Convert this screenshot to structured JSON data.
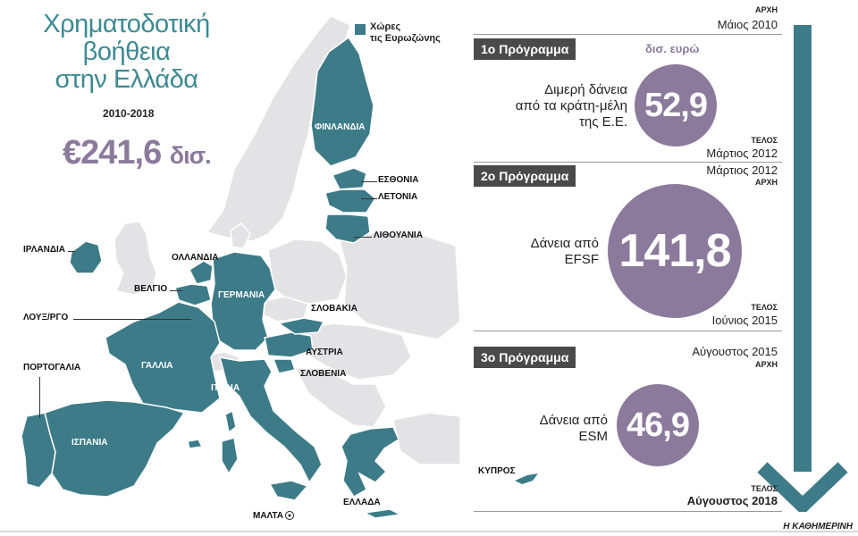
{
  "header": {
    "title_line1": "Χρηματοδοτική",
    "title_line2": "βοήθεια",
    "title_line3": "στην Ελλάδα",
    "years": "2010-2018",
    "total_currency": "€",
    "total_value": "241,6",
    "total_unit": "δισ."
  },
  "legend": {
    "line1": "Χώρες",
    "line2": "τις Ευρωζώνης"
  },
  "map_labels": {
    "finland": "ΦΙΝΛΑΝΔΙΑ",
    "estonia": "ΕΣΘΟΝΙΑ",
    "latvia": "ΛΕΤΟΝΙΑ",
    "lithuania": "ΛΙΘΟΥΑΝΙΑ",
    "ireland": "ΙΡΛΑΝΔΙΑ",
    "netherlands": "ΟΛΛΑΝΔΙΑ",
    "belgium": "ΒΕΛΓΙΟ",
    "germany": "ΓΕΡΜΑΝΙΑ",
    "luxembourg": "ΛΟΥΞ/ΡΓΟ",
    "slovakia": "ΣΛΟΒΑΚΙΑ",
    "austria": "ΑΥΣΤΡΙΑ",
    "slovenia": "ΣΛΟΒΕΝΙΑ",
    "portugal": "ΠΟΡΤΟΓΑΛΙΑ",
    "france": "ΓΑΛΛΙΑ",
    "italy": "ΙΤΑΛΙΑ",
    "spain": "ΙΣΠΑΝΙΑ",
    "cyprus": "ΚΥΠΡΟΣ",
    "malta": "ΜΑΛΤΑ",
    "greece": "ΕΛΛΑΔΑ"
  },
  "timeline": {
    "start_label": "ΑΡΧΗ",
    "start_date": "Μάιος 2010",
    "end_label": "ΤΕΛΟΣ",
    "end_date": "Αύγουστος 2018"
  },
  "programmes": [
    {
      "title": "1ο Πρόγραμμα",
      "unit": "δισ. ευρώ",
      "desc_line1": "Διμερή δάνεια",
      "desc_line2": "από τα κράτη-μέλη",
      "desc_line3": "της Ε.Ε.",
      "value": "52,9",
      "end_label": "ΤΕΛΟΣ",
      "end_date": "Μάρτιος 2012"
    },
    {
      "title": "2ο Πρόγραμμα",
      "start_date": "Μάρτιος 2012",
      "start_label": "ΑΡΧΗ",
      "desc_line1": "Δάνεια από",
      "desc_line2": "EFSF",
      "value": "141,8",
      "end_label": "ΤΕΛΟΣ",
      "end_date": "Ιούνιος 2015"
    },
    {
      "title": "3ο Πρόγραμμα",
      "start_date": "Αύγουστος 2015",
      "start_label": "ΑΡΧΗ",
      "desc_line1": "Δάνεια από",
      "desc_line2": "ESM",
      "value": "46,9"
    }
  ],
  "source": "Η ΚΑΘΗΜΕΡΙΝΗ",
  "colors": {
    "eurozone": "#3d7b88",
    "non_eurozone": "#e3e3e6",
    "accent": "#8b7a9b",
    "title": "#3d8a92",
    "arrow": "#3d7b88"
  }
}
